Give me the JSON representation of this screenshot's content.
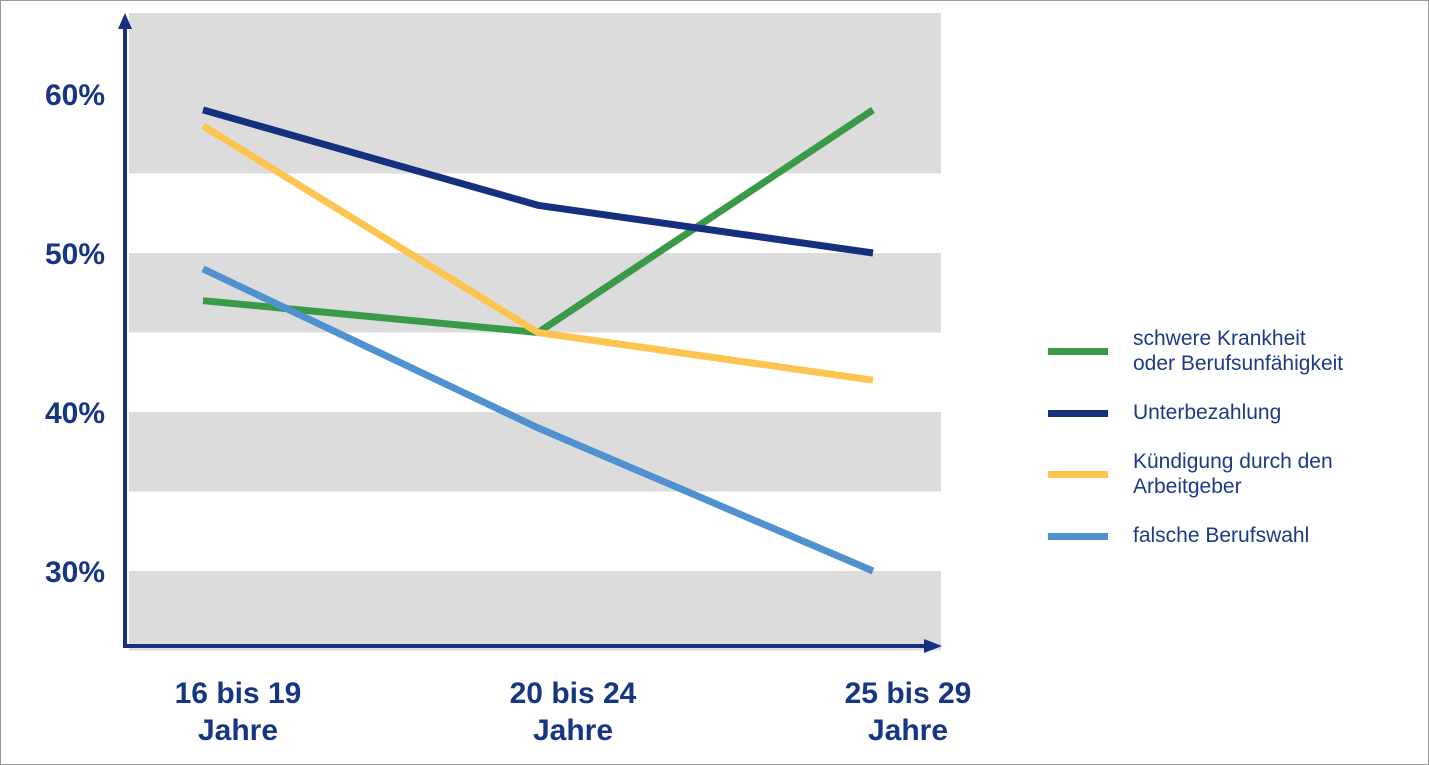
{
  "chart_data": {
    "type": "line",
    "categories": [
      "16 bis 19\nJahre",
      "20 bis 24\nJahre",
      "25 bis 29\nJahre"
    ],
    "series": [
      {
        "name": "schwere Krankheit\noder Berufsunfähigkeit",
        "color": "#3a9a48",
        "values": [
          47,
          45,
          59
        ]
      },
      {
        "name": "Unterbezahlung",
        "color": "#14307e",
        "values": [
          59,
          53,
          50
        ]
      },
      {
        "name": "Kündigung durch den\nArbeitgeber",
        "color": "#fdc450",
        "values": [
          58,
          45,
          42
        ]
      },
      {
        "name": "falsche Berufswahl",
        "color": "#4f92cf",
        "values": [
          49,
          39,
          30
        ]
      }
    ],
    "yticks": [
      "30%",
      "40%",
      "50%",
      "60%"
    ],
    "ylim": [
      25,
      65
    ],
    "title": "",
    "xlabel": "",
    "ylabel": "",
    "grid": "alternating-bands",
    "legend_position": "right",
    "axis_color": "#14307e",
    "band_color": "#dcdcdc"
  }
}
